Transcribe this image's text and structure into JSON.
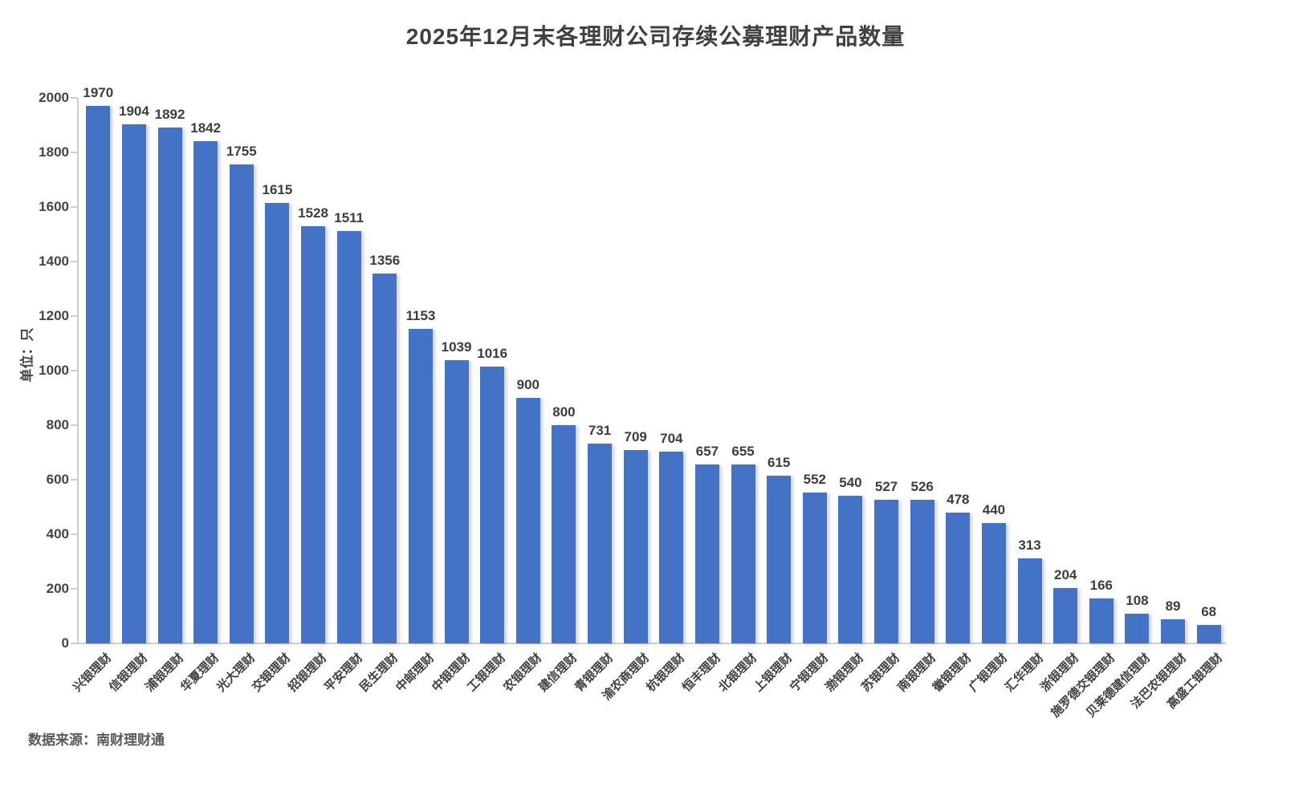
{
  "chart_data": {
    "type": "bar",
    "title": "2025年12月末各理财公司存续公募理财产品数量",
    "xlabel": "",
    "ylabel": "单位：只",
    "ylim": [
      0,
      2000
    ],
    "ytick_step": 200,
    "grid": false,
    "legend_position": "none",
    "bar_color": "#4472C4",
    "label_color": "#3d3d3d",
    "axis_color": "#cfcdcb",
    "categories": [
      "兴银理财",
      "信银理财",
      "浦银理财",
      "华夏理财",
      "光大理财",
      "交银理财",
      "招银理财",
      "平安理财",
      "民生理财",
      "中邮理财",
      "中银理财",
      "工银理财",
      "农银理财",
      "建信理财",
      "青银理财",
      "渝农商理财",
      "杭银理财",
      "恒丰理财",
      "北银理财",
      "上银理财",
      "宁银理财",
      "渤银理财",
      "苏银理财",
      "南银理财",
      "徽银理财",
      "广银理财",
      "汇华理财",
      "浙银理财",
      "施罗德交银理财",
      "贝莱德建信理财",
      "法巴农银理财",
      "高盛工银理财"
    ],
    "values": [
      1970,
      1904,
      1892,
      1842,
      1755,
      1615,
      1528,
      1511,
      1356,
      1153,
      1039,
      1016,
      900,
      800,
      731,
      709,
      704,
      657,
      655,
      615,
      552,
      540,
      527,
      526,
      478,
      440,
      313,
      204,
      166,
      108,
      89,
      68
    ]
  },
  "footer": {
    "source": "数据来源：南财理财通"
  }
}
